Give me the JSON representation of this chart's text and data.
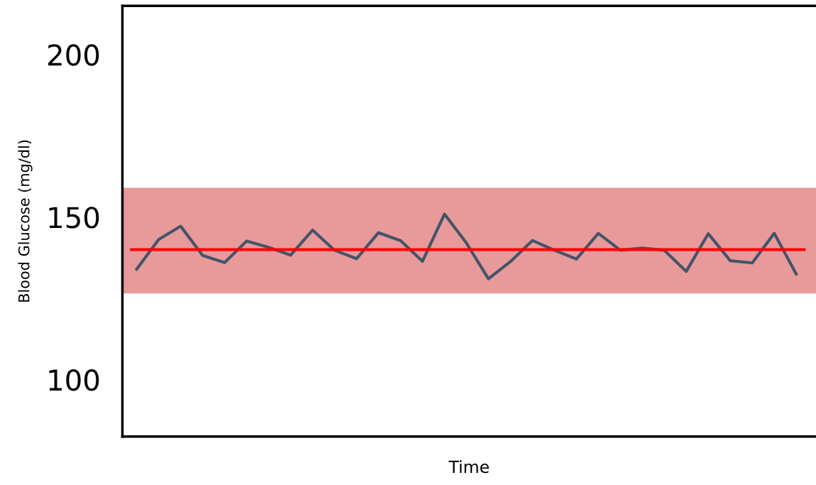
{
  "chart_data": {
    "type": "line",
    "xlabel": "Time",
    "ylabel": "Blood Glucose (mg/dl)",
    "categories": [
      null,
      null,
      null,
      null,
      null,
      null,
      null,
      null,
      null,
      null,
      null,
      null,
      null,
      null,
      null,
      null,
      null,
      null,
      null,
      null,
      null,
      null,
      null,
      null,
      null,
      null,
      null,
      null,
      null,
      null,
      null
    ],
    "series": [
      {
        "color": "#44546a",
        "values": [
          134,
          143.1,
          147.2,
          138.2,
          136,
          142.6,
          140.7,
          138.3,
          146,
          139.8,
          137.2,
          145.2,
          142.8,
          136.4,
          150.9,
          142,
          131,
          136.3,
          142.8,
          139.8,
          137.1,
          145,
          139.8,
          140.5,
          139.8,
          133.3,
          144.9,
          136.6,
          135.9,
          145,
          132.5
        ]
      }
    ],
    "ylim": [
      82.5,
      215
    ],
    "yticks": [
      100,
      150,
      200
    ],
    "tick_labels": "y",
    "line_style": "solid",
    "ref_lines": [
      {
        "axis": "y",
        "value": 140,
        "color": "#ff0000"
      }
    ],
    "bands": [
      {
        "axis": "y",
        "from": 126.5,
        "to": 159,
        "color": "#e89a9a"
      }
    ]
  }
}
